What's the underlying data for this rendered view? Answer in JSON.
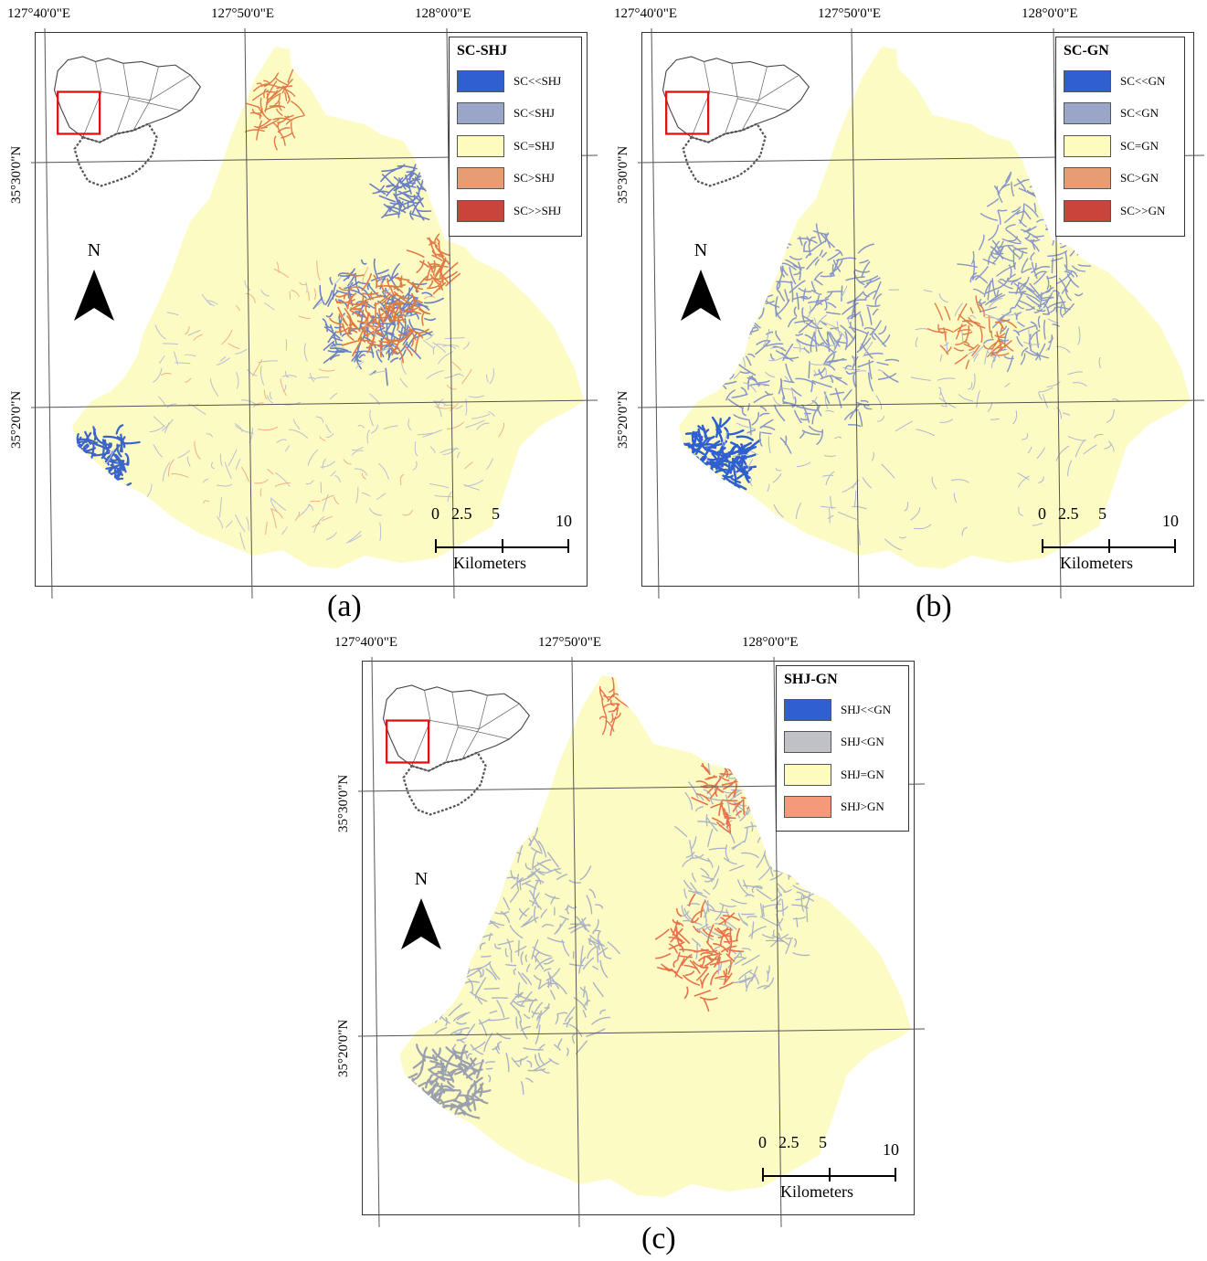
{
  "coords": {
    "lon": [
      "127°40'0\"E",
      "127°50'0\"E",
      "128°0'0\"E"
    ],
    "lat": [
      "35°30'0\"N",
      "35°20'0\"N"
    ]
  },
  "north_label": "N",
  "scale": {
    "ticks": [
      "0",
      "2.5",
      "5",
      "10"
    ],
    "unit": "Kilometers"
  },
  "panels": [
    {
      "caption": "(a)",
      "legend_title": "SC-SHJ",
      "legend": [
        {
          "label": "SC<<SHJ",
          "color": "#2f5fd0"
        },
        {
          "label": "SC<SHJ",
          "color": "#9aa6c8"
        },
        {
          "label": "SC=SHJ",
          "color": "#fdfbbd"
        },
        {
          "label": "SC>SHJ",
          "color": "#e89c74"
        },
        {
          "label": "SC>>SHJ",
          "color": "#c9453b"
        }
      ]
    },
    {
      "caption": "(b)",
      "legend_title": "SC-GN",
      "legend": [
        {
          "label": "SC<<GN",
          "color": "#2f5fd0"
        },
        {
          "label": "SC<GN",
          "color": "#9aa6c8"
        },
        {
          "label": "SC=GN",
          "color": "#fdfbbd"
        },
        {
          "label": "SC>GN",
          "color": "#e89c74"
        },
        {
          "label": "SC>>GN",
          "color": "#c9453b"
        }
      ]
    },
    {
      "caption": "(c)",
      "legend_title": "SHJ-GN",
      "legend": [
        {
          "label": "SHJ<<GN",
          "color": "#2f5fd0"
        },
        {
          "label": "SHJ<GN",
          "color": "#bfc1c6"
        },
        {
          "label": "SHJ=GN",
          "color": "#fdfbbd"
        },
        {
          "label": "SHJ>GN",
          "color": "#f49a7a"
        }
      ]
    }
  ]
}
